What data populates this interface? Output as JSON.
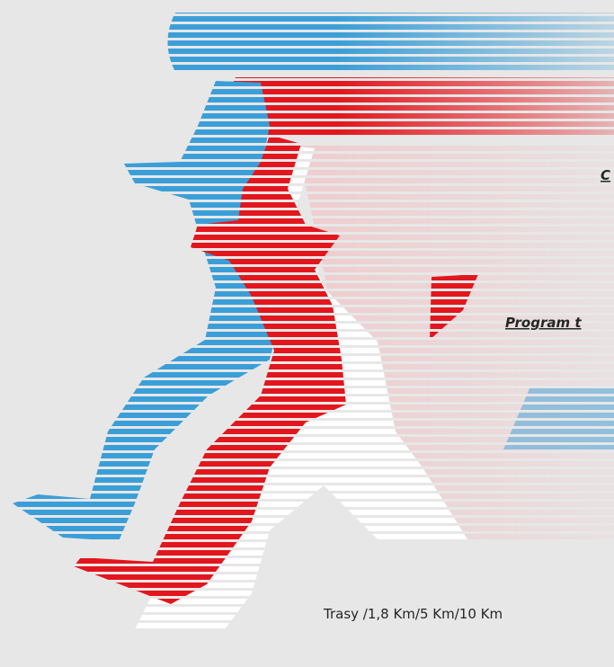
{
  "texts": {
    "heading_fragment": "C",
    "program": "Program t",
    "routes": "Trasy /1,8 Km/5 Km/10 Km"
  }
}
